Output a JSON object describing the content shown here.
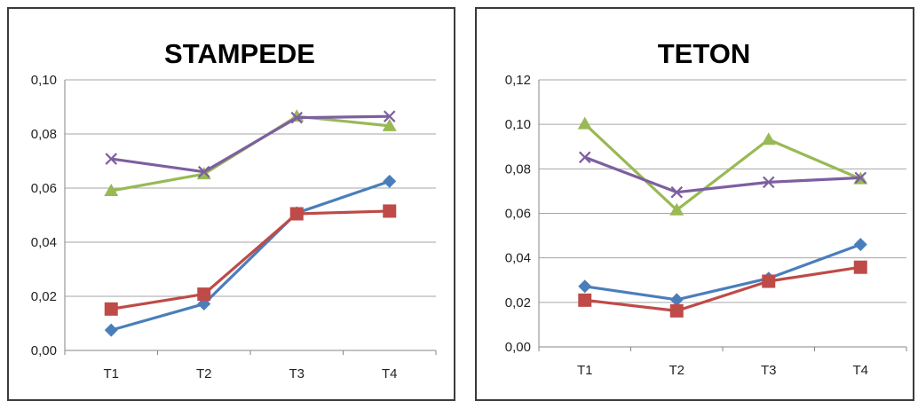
{
  "colors": {
    "blue": "#4a7ebb",
    "red": "#be4b48",
    "green": "#98b954",
    "purple": "#7d5fa0",
    "gridline": "#a6a6a6",
    "axis": "#868686"
  },
  "chart_data": [
    {
      "type": "line",
      "title": "STAMPEDE",
      "xlabel": "",
      "ylabel": "",
      "categories": [
        "T1",
        "T2",
        "T3",
        "T4"
      ],
      "yticks": [
        "0,00",
        "0,02",
        "0,04",
        "0,06",
        "0,08",
        "0,10"
      ],
      "ylim": [
        0,
        0.1
      ],
      "grid": true,
      "legend": "none",
      "series": [
        {
          "color": "#4a7ebb",
          "marker": "diamond",
          "values": [
            0.0075,
            0.0172,
            0.0508,
            0.0625
          ]
        },
        {
          "color": "#be4b48",
          "marker": "square",
          "values": [
            0.0153,
            0.0208,
            0.0505,
            0.0515
          ]
        },
        {
          "color": "#98b954",
          "marker": "triangle",
          "values": [
            0.059,
            0.0652,
            0.0865,
            0.083
          ]
        },
        {
          "color": "#7d5fa0",
          "marker": "x",
          "values": [
            0.0708,
            0.066,
            0.086,
            0.0865
          ]
        }
      ]
    },
    {
      "type": "line",
      "title": "TETON",
      "xlabel": "",
      "ylabel": "",
      "categories": [
        "T1",
        "T2",
        "T3",
        "T4"
      ],
      "yticks": [
        "0,00",
        "0,02",
        "0,04",
        "0,06",
        "0,08",
        "0,10",
        "0,12"
      ],
      "ylim": [
        0,
        0.12
      ],
      "grid": true,
      "legend": "none",
      "series": [
        {
          "color": "#4a7ebb",
          "marker": "diamond",
          "values": [
            0.0272,
            0.0212,
            0.0308,
            0.046
          ]
        },
        {
          "color": "#be4b48",
          "marker": "square",
          "values": [
            0.021,
            0.0162,
            0.0295,
            0.0358
          ]
        },
        {
          "color": "#98b954",
          "marker": "triangle",
          "values": [
            0.1002,
            0.0615,
            0.0932,
            0.0755
          ]
        },
        {
          "color": "#7d5fa0",
          "marker": "x",
          "values": [
            0.0852,
            0.0695,
            0.074,
            0.076
          ]
        }
      ]
    }
  ]
}
